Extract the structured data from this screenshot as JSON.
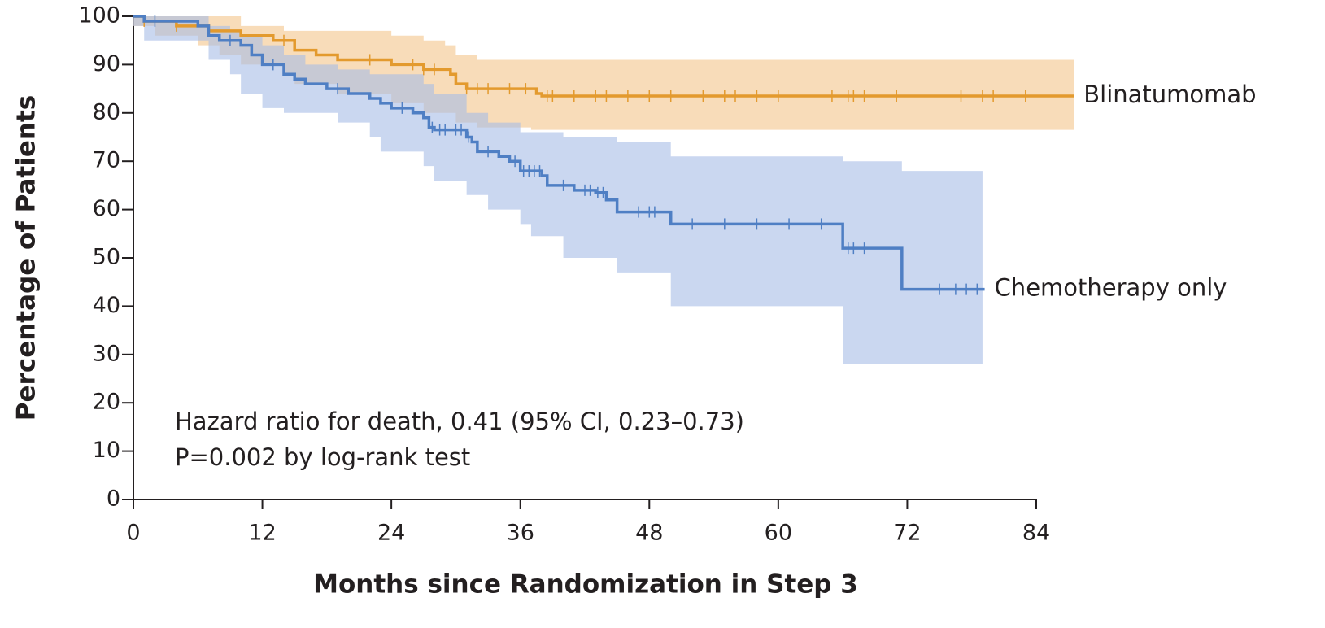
{
  "chart_data": {
    "type": "km",
    "y_label": "Percentage of Patients",
    "x_label": "Months since Randomization in Step 3",
    "annotations": [
      "Hazard ratio for death, 0.41 (95% CI, 0.23–0.73)",
      "P=0.002 by log-rank test"
    ],
    "xlim": [
      0,
      84
    ],
    "xticks": [
      0,
      12,
      24,
      36,
      48,
      60,
      72,
      84
    ],
    "ylim": [
      0,
      100
    ],
    "yticks": [
      0,
      10,
      20,
      30,
      40,
      50,
      60,
      70,
      80,
      90,
      100
    ],
    "series": [
      {
        "name": "Blinatumomab",
        "color": "#e39a2e",
        "band_color": "#f3c48a",
        "x": [
          0,
          1,
          4,
          7,
          10,
          13,
          15,
          17,
          19,
          24,
          27,
          29.5,
          30,
          31,
          37.5,
          38,
          87.5
        ],
        "values": [
          100,
          99,
          98,
          97,
          96,
          95,
          93,
          92,
          91,
          90,
          89,
          88,
          86,
          85,
          84,
          83.5,
          83.5
        ],
        "band": {
          "x": [
            0,
            2,
            6,
            8,
            10,
            12,
            14,
            15,
            19,
            24,
            27,
            29,
            30,
            32,
            36,
            37,
            38,
            87.5
          ],
          "upper": [
            100,
            100,
            100,
            100,
            98,
            98,
            97,
            97,
            97,
            96,
            95,
            94,
            92,
            91,
            91,
            91,
            91,
            91
          ],
          "lower": [
            100,
            98,
            96,
            94,
            92,
            90,
            90,
            88,
            86,
            84,
            82,
            80,
            80,
            78,
            77,
            77,
            76.5,
            76.5
          ]
        },
        "censored": [
          1,
          4,
          14,
          22,
          26,
          27,
          28,
          31,
          32,
          33,
          35,
          36.5,
          38.5,
          39,
          41,
          43,
          44,
          46,
          48,
          50,
          53,
          55,
          56,
          58,
          60,
          65,
          66.5,
          67,
          68,
          71,
          77,
          79,
          80,
          83
        ]
      },
      {
        "name": "Chemotherapy only",
        "color": "#4f7fc4",
        "band_color": "#a7bce6",
        "x": [
          0,
          1,
          6,
          7,
          8,
          10,
          11,
          12,
          14,
          15,
          16,
          18,
          20,
          22,
          23,
          24,
          26,
          27,
          27.5,
          28,
          31,
          31.5,
          32,
          34,
          35,
          36,
          38,
          38.5,
          41,
          43,
          44,
          45,
          50,
          66,
          71.5,
          79.2
        ],
        "values": [
          100,
          99,
          98,
          96,
          95,
          94,
          92,
          90,
          88,
          87,
          86,
          85,
          84,
          83,
          82,
          81,
          80,
          79,
          77,
          76.5,
          75,
          74,
          72,
          71,
          70,
          68,
          67,
          65,
          64,
          63.5,
          62,
          59.5,
          57,
          52,
          43.5,
          43.5
        ],
        "band": {
          "x": [
            0,
            1,
            6,
            7,
            8,
            9,
            10,
            12,
            14,
            16,
            19,
            20,
            22,
            23,
            26,
            27,
            28,
            30,
            31,
            32,
            33,
            34,
            36,
            37,
            40,
            45,
            50,
            66,
            71.5,
            79
          ],
          "upper": [
            100,
            100,
            100,
            98,
            98,
            97,
            96,
            94,
            92,
            90,
            89,
            89,
            88,
            88,
            88,
            86,
            84,
            84,
            80,
            80,
            78,
            78,
            76,
            76,
            75,
            74,
            71,
            70,
            68,
            68
          ],
          "lower": [
            100,
            98,
            95,
            95,
            91,
            91,
            88,
            84,
            81,
            80,
            80,
            78,
            78,
            75,
            72,
            72,
            69,
            66,
            66,
            63,
            63,
            60,
            60,
            57,
            54.5,
            50,
            47,
            40,
            28,
            28
          ]
        },
        "censored": [
          2,
          9,
          13,
          19,
          25,
          27.8,
          28.5,
          29,
          30,
          30.5,
          31.2,
          33,
          35.5,
          36.3,
          36.8,
          37.3,
          37.8,
          40,
          42,
          42.5,
          43.2,
          43.7,
          47,
          48,
          48.5,
          52,
          55,
          58,
          61,
          64,
          66.5,
          67,
          68,
          75,
          76.5,
          77.5,
          78.5
        ]
      }
    ]
  }
}
